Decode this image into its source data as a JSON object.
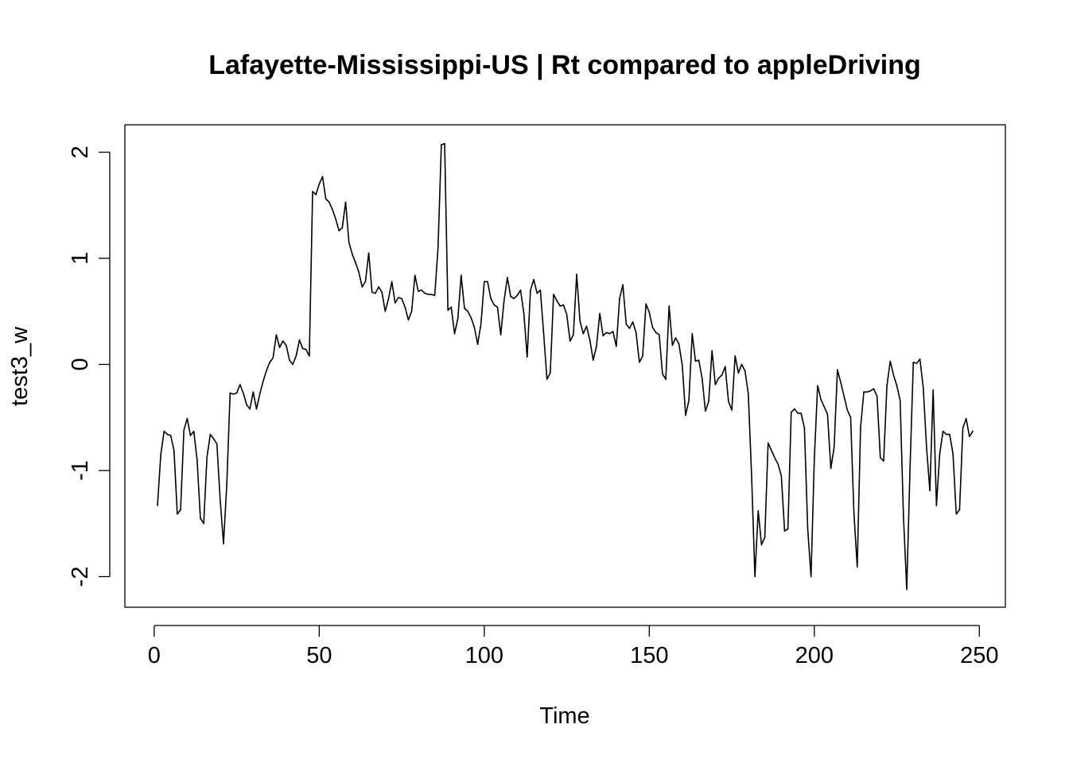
{
  "chart_data": {
    "type": "line",
    "title": "Lafayette-Mississippi-US | Rt compared to appleDriving",
    "xlabel": "Time",
    "ylabel": "test3_w",
    "xlim": [
      1,
      248
    ],
    "ylim": [
      -2.12,
      2.09
    ],
    "x_ticks": [
      0,
      50,
      100,
      150,
      200,
      250
    ],
    "x_tick_labels": [
      "0",
      "50",
      "100",
      "150",
      "200",
      "250"
    ],
    "y_ticks": [
      -2,
      -1,
      0,
      1,
      2
    ],
    "y_tick_labels": [
      "-2",
      "-1",
      "0",
      "1",
      "2"
    ],
    "grid": false,
    "line_color": "#000000",
    "series": [
      {
        "x_start": 1,
        "values": [
          -1.33,
          -0.85,
          -0.63,
          -0.66,
          -0.67,
          -0.81,
          -1.41,
          -1.37,
          -0.62,
          -0.51,
          -0.67,
          -0.63,
          -0.9,
          -1.45,
          -1.5,
          -0.87,
          -0.66,
          -0.7,
          -0.75,
          -1.28,
          -1.69,
          -1.13,
          -0.27,
          -0.28,
          -0.27,
          -0.19,
          -0.27,
          -0.38,
          -0.42,
          -0.26,
          -0.42,
          -0.28,
          -0.16,
          -0.06,
          0.02,
          0.06,
          0.28,
          0.16,
          0.22,
          0.18,
          0.04,
          0.0,
          0.08,
          0.23,
          0.15,
          0.14,
          0.08,
          1.63,
          1.6,
          1.7,
          1.77,
          1.56,
          1.53,
          1.46,
          1.37,
          1.26,
          1.29,
          1.53,
          1.15,
          1.04,
          0.96,
          0.87,
          0.73,
          0.78,
          1.05,
          0.68,
          0.67,
          0.73,
          0.68,
          0.5,
          0.62,
          0.78,
          0.58,
          0.63,
          0.62,
          0.54,
          0.42,
          0.5,
          0.84,
          0.69,
          0.7,
          0.67,
          0.66,
          0.66,
          0.65,
          1.1,
          2.07,
          2.08,
          0.51,
          0.54,
          0.29,
          0.43,
          0.84,
          0.53,
          0.5,
          0.44,
          0.35,
          0.19,
          0.38,
          0.78,
          0.78,
          0.62,
          0.56,
          0.54,
          0.28,
          0.6,
          0.82,
          0.64,
          0.62,
          0.65,
          0.7,
          0.48,
          0.07,
          0.7,
          0.8,
          0.67,
          0.7,
          0.29,
          -0.14,
          -0.08,
          0.66,
          0.6,
          0.55,
          0.56,
          0.47,
          0.22,
          0.28,
          0.85,
          0.41,
          0.29,
          0.36,
          0.23,
          0.04,
          0.17,
          0.48,
          0.27,
          0.3,
          0.29,
          0.31,
          0.17,
          0.62,
          0.75,
          0.38,
          0.34,
          0.4,
          0.3,
          0.02,
          0.08,
          0.57,
          0.49,
          0.35,
          0.3,
          0.28,
          -0.09,
          -0.14,
          0.55,
          0.18,
          0.25,
          0.19,
          -0.01,
          -0.48,
          -0.34,
          0.29,
          0.03,
          0.04,
          -0.13,
          -0.44,
          -0.35,
          0.13,
          -0.19,
          -0.13,
          -0.1,
          -0.02,
          -0.35,
          -0.43,
          0.08,
          -0.08,
          0.0,
          -0.06,
          -0.28,
          -1.05,
          -2.0,
          -1.38,
          -1.7,
          -1.63,
          -0.74,
          -0.81,
          -0.88,
          -0.94,
          -1.05,
          -1.57,
          -1.55,
          -0.45,
          -0.42,
          -0.46,
          -0.46,
          -0.6,
          -1.55,
          -2.0,
          -0.89,
          -0.2,
          -0.33,
          -0.4,
          -0.47,
          -0.98,
          -0.78,
          -0.05,
          -0.17,
          -0.3,
          -0.43,
          -0.5,
          -1.4,
          -1.91,
          -0.6,
          -0.26,
          -0.26,
          -0.25,
          -0.23,
          -0.3,
          -0.88,
          -0.91,
          -0.2,
          0.03,
          -0.1,
          -0.2,
          -0.34,
          -1.43,
          -2.12,
          -0.97,
          0.02,
          0.01,
          0.05,
          -0.22,
          -0.78,
          -1.19,
          -0.24,
          -1.33,
          -0.84,
          -0.63,
          -0.66,
          -0.66,
          -0.84,
          -1.41,
          -1.37,
          -0.6,
          -0.51,
          -0.68,
          -0.63
        ]
      }
    ]
  }
}
